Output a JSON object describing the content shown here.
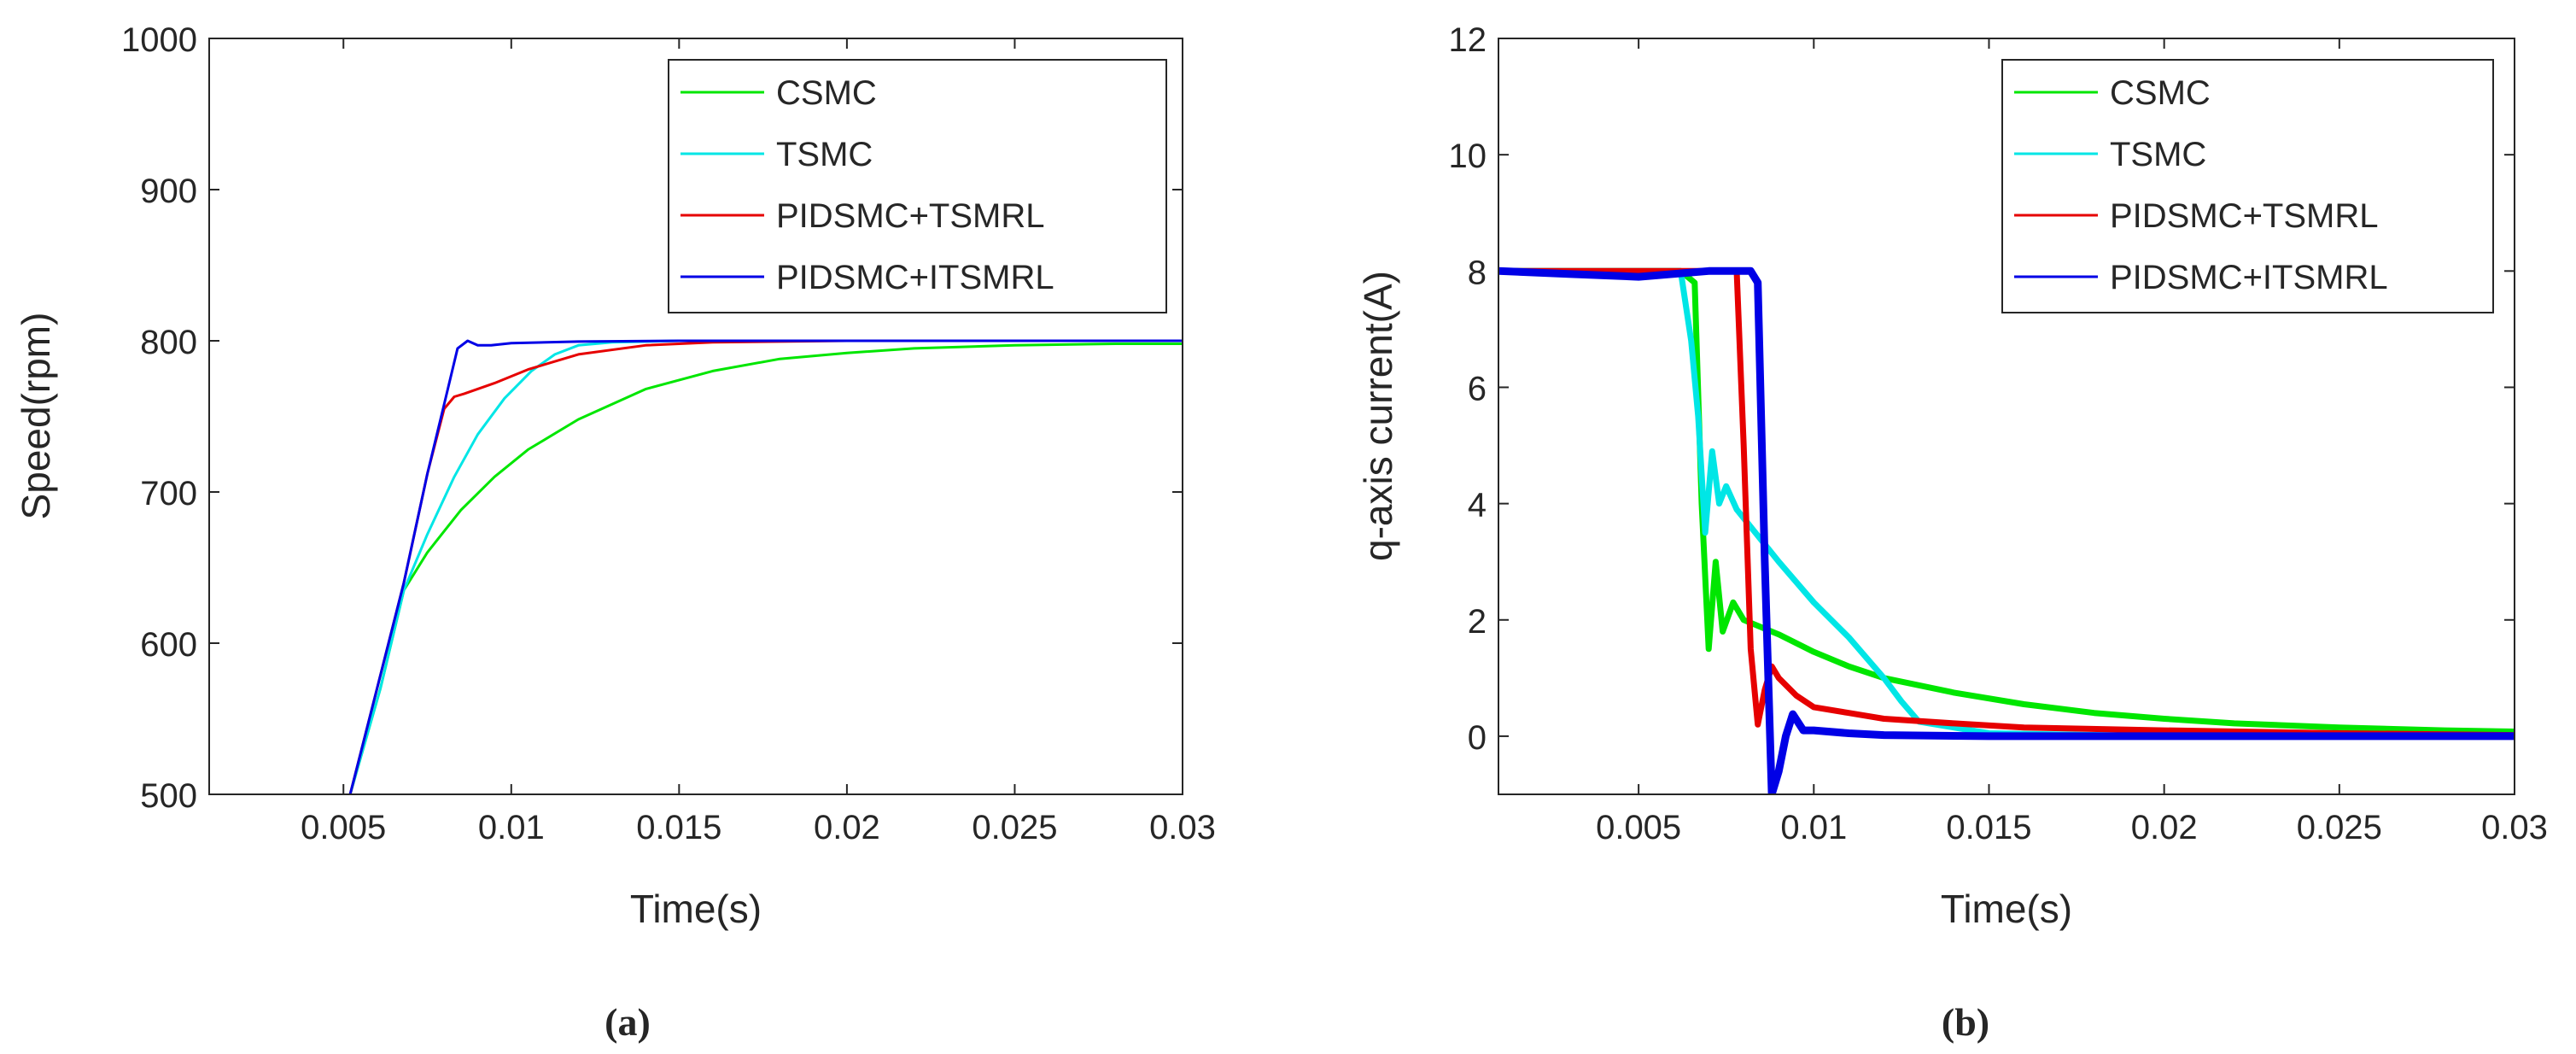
{
  "figure": {
    "caption_a": "(a)",
    "caption_b": "(b)"
  },
  "chart_data": [
    {
      "type": "line",
      "panel": "a",
      "title": "",
      "xlabel": "Time(s)",
      "ylabel": "Speed(rpm)",
      "xlim": [
        0.001,
        0.03
      ],
      "ylim": [
        500,
        1000
      ],
      "xticks": [
        0.005,
        0.01,
        0.015,
        0.02,
        0.025,
        0.03
      ],
      "xtick_labels": [
        "0.005",
        "0.01",
        "0.015",
        "0.02",
        "0.025",
        "0.03"
      ],
      "yticks": [
        500,
        600,
        700,
        800,
        900,
        1000
      ],
      "ytick_labels": [
        "500",
        "600",
        "700",
        "800",
        "900",
        "1000"
      ],
      "grid": false,
      "legend_position": "top-right",
      "series": [
        {
          "name": "CSMC",
          "color": "#00e600",
          "x": [
            0.0052,
            0.0061,
            0.0068,
            0.0075,
            0.0085,
            0.0095,
            0.0105,
            0.012,
            0.014,
            0.016,
            0.018,
            0.02,
            0.022,
            0.025,
            0.028,
            0.03
          ],
          "y": [
            500,
            570,
            635,
            660,
            688,
            710,
            728,
            748,
            768,
            780,
            788,
            792,
            795,
            797,
            798,
            798
          ]
        },
        {
          "name": "TSMC",
          "color": "#00e6e6",
          "x": [
            0.0052,
            0.0061,
            0.0068,
            0.0075,
            0.0083,
            0.009,
            0.0098,
            0.0106,
            0.0113,
            0.012,
            0.013,
            0.015,
            0.02,
            0.025,
            0.03
          ],
          "y": [
            500,
            570,
            635,
            672,
            710,
            738,
            762,
            780,
            791,
            797,
            799,
            800,
            800,
            800,
            800
          ]
        },
        {
          "name": "PIDSMC+TSMRL",
          "color": "#e60000",
          "x": [
            0.0052,
            0.006,
            0.0068,
            0.0075,
            0.008,
            0.0083,
            0.0086,
            0.0095,
            0.0105,
            0.012,
            0.014,
            0.016,
            0.02,
            0.025,
            0.03
          ],
          "y": [
            500,
            570,
            640,
            712,
            755,
            763,
            765,
            772,
            781,
            791,
            797,
            799,
            800,
            800,
            800
          ]
        },
        {
          "name": "PIDSMC+ITSMRL",
          "color": "#0000e6",
          "x": [
            0.0052,
            0.006,
            0.0068,
            0.0075,
            0.008,
            0.0084,
            0.0087,
            0.009,
            0.0094,
            0.01,
            0.012,
            0.015,
            0.02,
            0.025,
            0.03
          ],
          "y": [
            500,
            570,
            640,
            712,
            758,
            795,
            800,
            797,
            797,
            798.5,
            799.5,
            800,
            800,
            800,
            800
          ]
        }
      ]
    },
    {
      "type": "line",
      "panel": "b",
      "title": "",
      "xlabel": "Time(s)",
      "ylabel": "q-axis current(A)",
      "xlim": [
        0.001,
        0.03
      ],
      "ylim": [
        -1,
        12
      ],
      "xticks": [
        0.005,
        0.01,
        0.015,
        0.02,
        0.025,
        0.03
      ],
      "xtick_labels": [
        "0.005",
        "0.01",
        "0.015",
        "0.02",
        "0.025",
        "0.03"
      ],
      "yticks": [
        0,
        2,
        4,
        6,
        8,
        10,
        12
      ],
      "ytick_labels": [
        "0",
        "2",
        "4",
        "6",
        "8",
        "10",
        "12"
      ],
      "grid": false,
      "legend_position": "top-right",
      "series": [
        {
          "name": "CSMC",
          "color": "#00e600",
          "x": [
            0.001,
            0.003,
            0.005,
            0.0062,
            0.0066,
            0.0068,
            0.007,
            0.0072,
            0.0074,
            0.0077,
            0.008,
            0.009,
            0.01,
            0.011,
            0.012,
            0.014,
            0.016,
            0.018,
            0.02,
            0.022,
            0.025,
            0.028,
            0.03
          ],
          "y": [
            8.0,
            8.0,
            8.0,
            8.0,
            7.8,
            4.0,
            1.5,
            3.0,
            1.8,
            2.3,
            2.0,
            1.75,
            1.45,
            1.2,
            1.0,
            0.75,
            0.55,
            0.4,
            0.3,
            0.22,
            0.15,
            0.1,
            0.08
          ]
        },
        {
          "name": "TSMC",
          "color": "#00e6e6",
          "x": [
            0.001,
            0.003,
            0.005,
            0.0062,
            0.0065,
            0.0067,
            0.0069,
            0.0071,
            0.0073,
            0.0075,
            0.0078,
            0.0082,
            0.009,
            0.01,
            0.011,
            0.012,
            0.0125,
            0.013,
            0.015,
            0.02,
            0.025,
            0.03
          ],
          "y": [
            8.0,
            8.0,
            8.0,
            8.0,
            6.8,
            5.5,
            3.5,
            4.9,
            4.0,
            4.3,
            3.9,
            3.6,
            3.0,
            2.3,
            1.7,
            1.0,
            0.6,
            0.25,
            0.05,
            0.0,
            0.0,
            0.0
          ]
        },
        {
          "name": "PIDSMC+TSMRL",
          "color": "#e60000",
          "x": [
            0.001,
            0.003,
            0.005,
            0.007,
            0.0078,
            0.008,
            0.0082,
            0.0084,
            0.0086,
            0.0088,
            0.009,
            0.0095,
            0.01,
            0.011,
            0.012,
            0.014,
            0.016,
            0.02,
            0.025,
            0.03
          ],
          "y": [
            8.0,
            8.0,
            8.0,
            8.0,
            8.0,
            5.0,
            1.5,
            0.2,
            0.8,
            1.2,
            1.0,
            0.7,
            0.5,
            0.4,
            0.3,
            0.22,
            0.15,
            0.1,
            0.05,
            0.02
          ]
        },
        {
          "name": "PIDSMC+ITSMRL",
          "color": "#0000e6",
          "x": [
            0.001,
            0.003,
            0.005,
            0.007,
            0.0082,
            0.0084,
            0.0086,
            0.0088,
            0.009,
            0.0092,
            0.0094,
            0.0097,
            0.01,
            0.011,
            0.012,
            0.015,
            0.02,
            0.025,
            0.03
          ],
          "y": [
            8.0,
            7.95,
            7.9,
            8.0,
            8.0,
            7.8,
            3.0,
            -1.0,
            -0.6,
            0.0,
            0.38,
            0.1,
            0.1,
            0.05,
            0.02,
            0.0,
            0.0,
            0.0,
            0.0
          ]
        }
      ]
    }
  ]
}
